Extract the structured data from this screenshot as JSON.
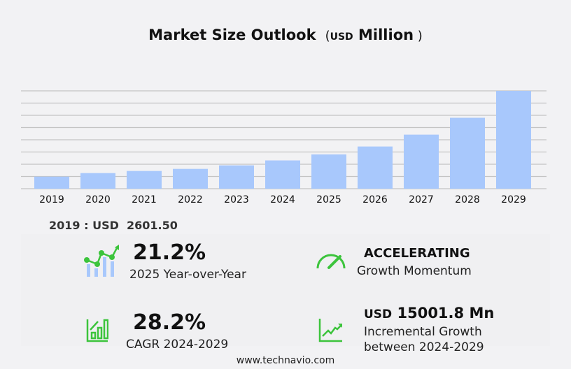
{
  "chart_data": {
    "type": "bar",
    "title": "Market Size Outlook",
    "unit_prefix": "USD",
    "unit": "Million",
    "categories": [
      "2019",
      "2020",
      "2021",
      "2022",
      "2023",
      "2024",
      "2025",
      "2026",
      "2027",
      "2028",
      "2029"
    ],
    "values": [
      2601.5,
      3370,
      3820,
      4270,
      5030,
      6098,
      7390,
      9100,
      11660,
      15290,
      21100
    ],
    "ylim": [
      0,
      21100
    ],
    "grid": true,
    "bar_color": "#a8c8fc"
  },
  "base": {
    "label": "2019 : USD",
    "value": "2601.50"
  },
  "stats": {
    "yoy": {
      "value": "21.2%",
      "label": "2025 Year-over-Year"
    },
    "momentum": {
      "value": "ACCELERATING",
      "label": "Growth Momentum"
    },
    "cagr": {
      "value": "28.2%",
      "label": "CAGR 2024-2029"
    },
    "incremental": {
      "prefix": "USD",
      "value": "15001.8 Mn",
      "label1": "Incremental Growth",
      "label2": "between 2024-2029"
    }
  },
  "footer": "www.technavio.com",
  "accent": "#3cc43c"
}
